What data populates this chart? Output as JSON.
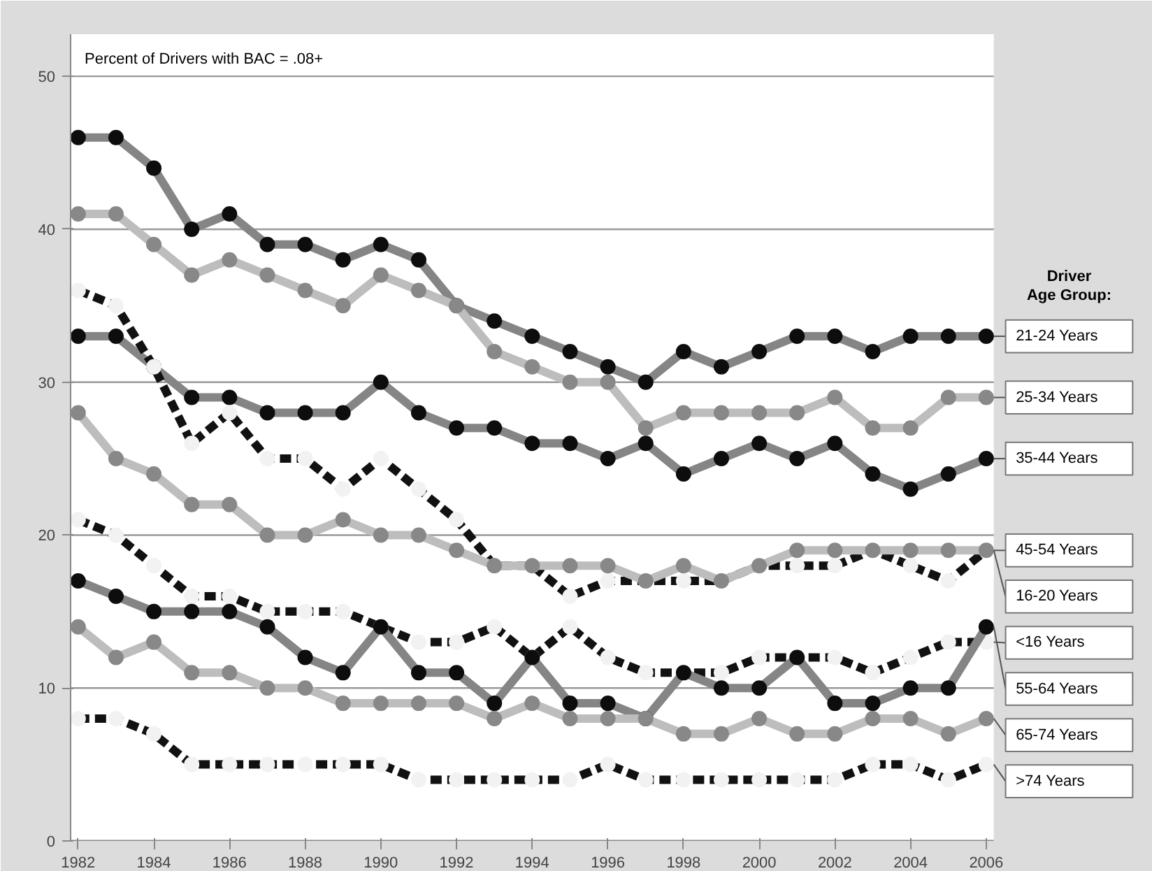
{
  "chart_data": {
    "type": "line",
    "ylabel": "Percent of Drivers with BAC = .08+",
    "legend_title": "Driver Age Group:",
    "x": [
      1982,
      1983,
      1984,
      1985,
      1986,
      1987,
      1988,
      1989,
      1990,
      1991,
      1992,
      1993,
      1994,
      1995,
      1996,
      1997,
      1998,
      1999,
      2000,
      2001,
      2002,
      2003,
      2004,
      2005,
      2006
    ],
    "xlim": [
      1981.8,
      2006.2
    ],
    "xticks": [
      1982,
      1984,
      1986,
      1988,
      1990,
      1992,
      1994,
      1996,
      1998,
      2000,
      2002,
      2004,
      2006
    ],
    "ylim": [
      0,
      50
    ],
    "yticks": [
      0,
      10,
      20,
      30,
      40,
      50
    ],
    "grid": "y",
    "marker": "circle",
    "series": [
      {
        "name": "21-24 Years",
        "color": "#858585",
        "line_style": "solid",
        "values": [
          46,
          46,
          44,
          40,
          41,
          39,
          39,
          38,
          39,
          38,
          35,
          34,
          33,
          32,
          31,
          30,
          32,
          31,
          32,
          33,
          33,
          32,
          33,
          33,
          33
        ]
      },
      {
        "name": "25-34 Years",
        "color": "#bdbdbd",
        "line_style": "solid",
        "values": [
          41,
          41,
          39,
          37,
          38,
          37,
          36,
          35,
          37,
          36,
          35,
          32,
          31,
          30,
          30,
          27,
          28,
          28,
          28,
          28,
          29,
          27,
          27,
          29,
          29
        ]
      },
      {
        "name": "35-44 Years",
        "color": "#858585",
        "line_style": "solid",
        "values": [
          33,
          33,
          31,
          29,
          29,
          28,
          28,
          28,
          30,
          28,
          27,
          27,
          26,
          26,
          25,
          26,
          24,
          25,
          26,
          25,
          26,
          24,
          23,
          24,
          25
        ]
      },
      {
        "name": "45-54 Years",
        "color": "#111111",
        "line_style": "dashed",
        "values": [
          36,
          35,
          31,
          26,
          28,
          25,
          25,
          23,
          25,
          23,
          21,
          18,
          18,
          16,
          17,
          17,
          17,
          17,
          18,
          18,
          18,
          19,
          18,
          17,
          19
        ]
      },
      {
        "name": "16-20 Years",
        "color": "#bdbdbd",
        "line_style": "solid",
        "values": [
          28,
          25,
          24,
          22,
          22,
          20,
          20,
          21,
          20,
          20,
          19,
          18,
          18,
          18,
          18,
          17,
          18,
          17,
          18,
          19,
          19,
          19,
          19,
          19,
          19
        ]
      },
      {
        "name": "<16 Years",
        "color": "#111111",
        "line_style": "dashed",
        "values": [
          21,
          20,
          18,
          16,
          16,
          15,
          15,
          15,
          14,
          13,
          13,
          14,
          12,
          14,
          12,
          11,
          11,
          11,
          12,
          12,
          12,
          11,
          12,
          13,
          13
        ]
      },
      {
        "name": "55-64 Years",
        "color": "#858585",
        "line_style": "solid",
        "values": [
          17,
          16,
          15,
          15,
          15,
          14,
          12,
          11,
          14,
          11,
          11,
          9,
          12,
          9,
          9,
          8,
          11,
          10,
          10,
          12,
          9,
          9,
          10,
          10,
          14
        ]
      },
      {
        "name": "65-74 Years",
        "color": "#bdbdbd",
        "line_style": "solid",
        "values": [
          14,
          12,
          13,
          11,
          11,
          10,
          10,
          9,
          9,
          9,
          9,
          8,
          9,
          8,
          8,
          8,
          7,
          7,
          8,
          7,
          7,
          8,
          8,
          7,
          8
        ]
      },
      {
        "name": ">74 Years",
        "color": "#111111",
        "line_style": "dashed",
        "values": [
          8,
          8,
          7,
          5,
          5,
          5,
          5,
          5,
          5,
          4,
          4,
          4,
          4,
          4,
          5,
          4,
          4,
          4,
          4,
          4,
          4,
          5,
          5,
          4,
          5
        ]
      }
    ]
  }
}
